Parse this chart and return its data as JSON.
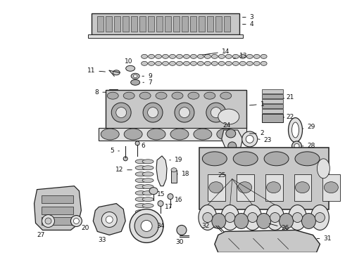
{
  "bg_color": "#ffffff",
  "lc": "#222222",
  "figsize": [
    4.9,
    3.6
  ],
  "dpi": 100,
  "label_fs": 6.5,
  "label_color": "#111111"
}
